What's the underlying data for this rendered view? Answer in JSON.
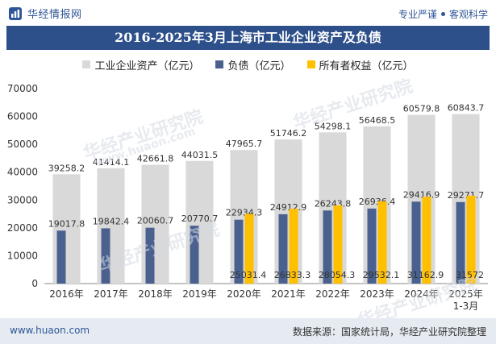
{
  "header": {
    "brand_name": "华经情报网",
    "tagline_1": "专业严谨",
    "tagline_2": "客观科学"
  },
  "chart_data": {
    "type": "bar",
    "title": "2016-2025年3月上海市工业企业资产及负债",
    "categories": [
      "2016年",
      "2017年",
      "2018年",
      "2019年",
      "2020年",
      "2021年",
      "2022年",
      "2023年",
      "2024年",
      "2025年\n1-3月"
    ],
    "series": [
      {
        "name": "工业企业资产（亿元）",
        "color": "#d9d9d9",
        "values": [
          39258.2,
          41414.1,
          42661.8,
          44031.5,
          47965.7,
          51746.2,
          54298.1,
          56468.5,
          60579.8,
          60843.7
        ],
        "labels": [
          "39258.2",
          "41414.1",
          "42661.8",
          "44031.5",
          "47965.7",
          "51746.2",
          "54298.1",
          "56468.5",
          "60579.8",
          "60843.7"
        ]
      },
      {
        "name": "负债（亿元）",
        "color": "#4a6190",
        "values": [
          19017.8,
          19842.4,
          20060.7,
          20770.7,
          22934.3,
          24912.9,
          26243.8,
          26936.4,
          29416.9,
          29271.7
        ],
        "labels": [
          "19017.8",
          "19842.4",
          "20060.7",
          "20770.7",
          "22934.3",
          "24912.9",
          "26243.8",
          "26936.4",
          "29416.9",
          "29271.7"
        ]
      },
      {
        "name": "所有者权益（亿元）",
        "color": "#ffc000",
        "values": [
          null,
          null,
          null,
          null,
          25031.4,
          26833.3,
          28054.3,
          29532.1,
          31162.9,
          31572
        ],
        "labels": [
          "",
          "",
          "",
          "",
          "25031.4",
          "26833.3",
          "28054.3",
          "29532.1",
          "31162.9",
          "31572"
        ]
      }
    ],
    "yticks": [
      "0",
      "10000",
      "20000",
      "30000",
      "40000",
      "50000",
      "60000",
      "70000"
    ],
    "ylim": [
      0,
      70000
    ],
    "grid": false,
    "legend_position": "top"
  },
  "watermark": {
    "text_cn": "华经产业研究院",
    "text_en": "www.huaon.com"
  },
  "footer": {
    "website": "www.huaon.com",
    "source": "数据来源：国家统计局，华经产业研究院整理"
  }
}
